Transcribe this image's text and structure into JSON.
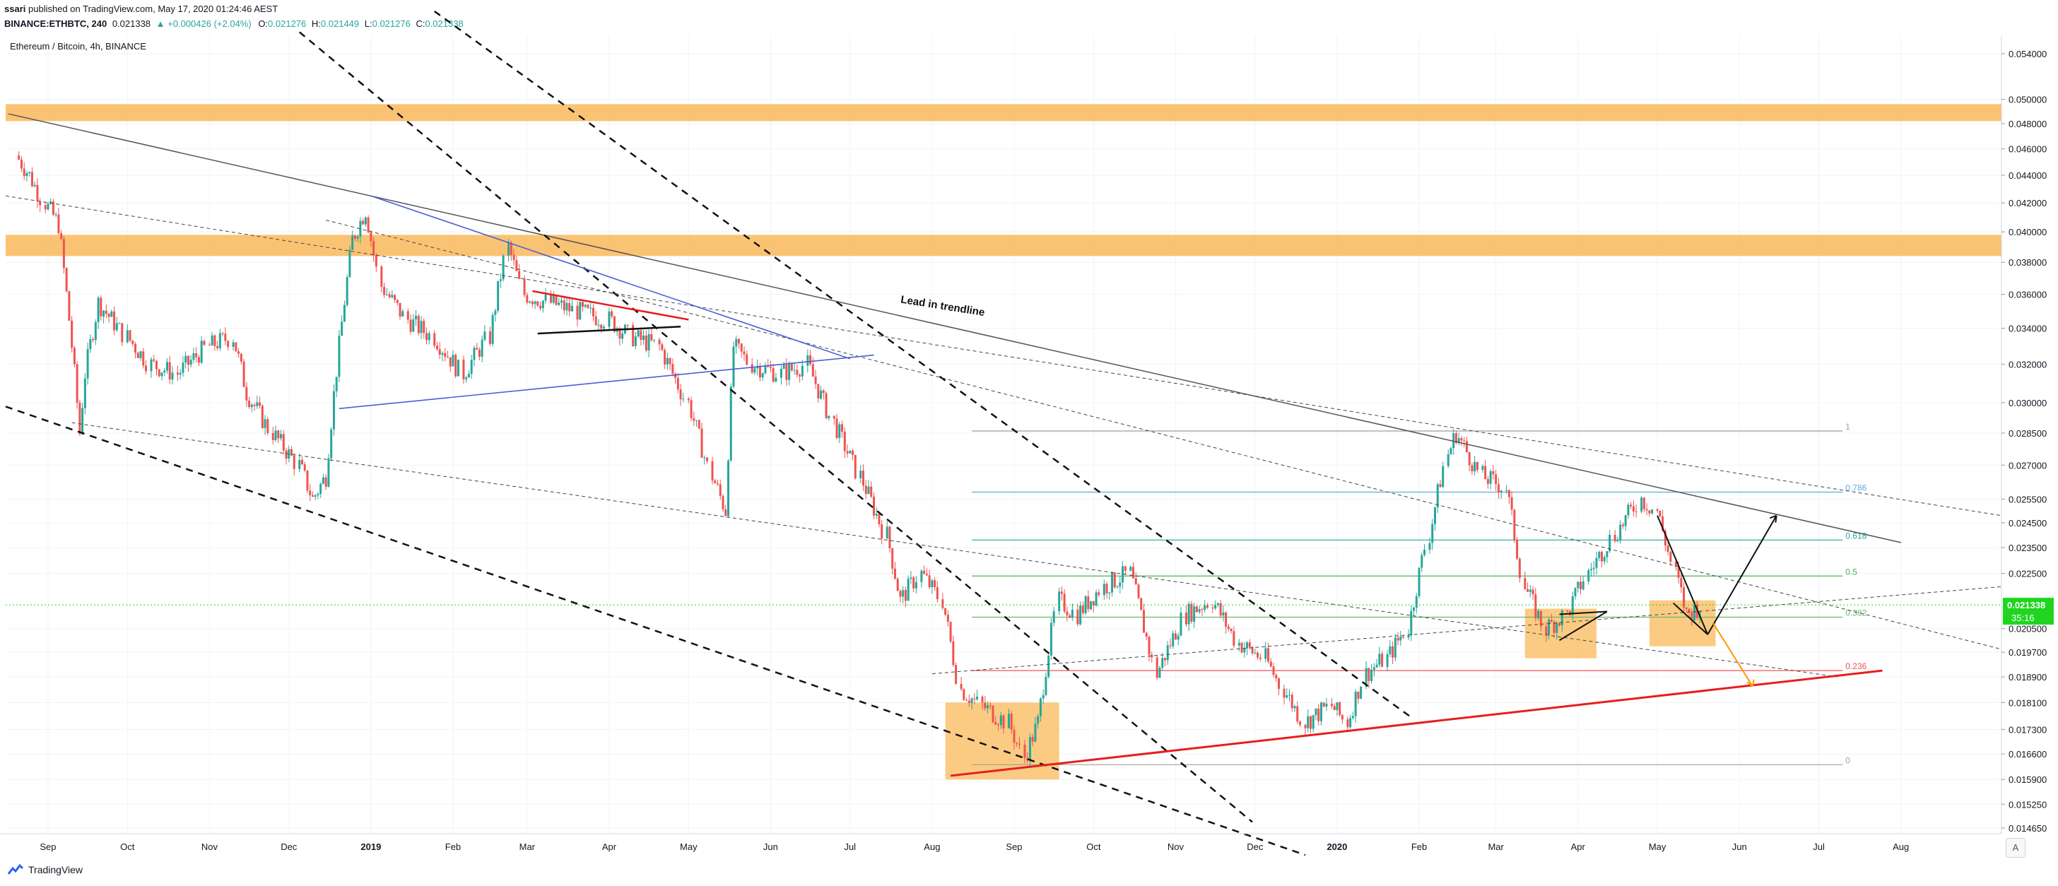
{
  "header": {
    "author": "ssari",
    "published_text": "published on TradingView.com, May 17, 2020 01:24:46 AEST",
    "symbol": "BINANCE:ETHBTC, 240",
    "last": "0.021338",
    "change": "▲ +0.000426 (+2.04%)",
    "o_label": "O:",
    "o_value": "0.021276",
    "h_label": "H:",
    "h_value": "0.021449",
    "l_label": "L:",
    "l_value": "0.021276",
    "c_label": "C:",
    "c_value": "0.021338"
  },
  "pane_title": "Ethereum / Bitcoin, 4h, BINANCE",
  "footer": {
    "brand": "TradingView",
    "scale_button": "A"
  },
  "colors": {
    "up": "#26a69a",
    "down": "#ef5350",
    "zone": "#f9b95a",
    "grid": "#f0f3fa",
    "axis_text": "#131722",
    "price_tag": "#1fd51f",
    "red_trend": "#e61e1e",
    "blue_trend": "#4b5fd6",
    "fib_gray": "#9e9e9e",
    "fib_786": "#5aaee0",
    "fib_618": "#26a69a",
    "fib_5": "#4caf50",
    "fib_382": "#66bb6a",
    "fib_236": "#ef5350",
    "orange_arrow": "#ff9800"
  },
  "chart_data": {
    "type": "candlestick",
    "title": "Ethereum / Bitcoin, 4h, BINANCE",
    "x_ticks": [
      "Sep",
      "Oct",
      "Nov",
      "Dec",
      "2019",
      "Feb",
      "Mar",
      "Apr",
      "May",
      "Jun",
      "Jul",
      "Aug",
      "Sep",
      "Oct",
      "Nov",
      "Dec",
      "2020",
      "Feb",
      "Mar",
      "Apr",
      "May",
      "Jun",
      "Jul",
      "Aug"
    ],
    "y_ticks": [
      "0.054000",
      "0.050000",
      "0.048000",
      "0.046000",
      "0.044000",
      "0.042000",
      "0.040000",
      "0.038000",
      "0.036000",
      "0.034000",
      "0.032000",
      "0.030000",
      "0.028500",
      "0.027000",
      "0.025500",
      "0.024500",
      "0.023500",
      "0.022500",
      "0.020500",
      "0.019700",
      "0.018900",
      "0.018100",
      "0.017300",
      "0.016600",
      "0.015900",
      "0.015250",
      "0.014650"
    ],
    "ylim": [
      0.0145,
      0.055
    ],
    "y_scale": "log",
    "price_path": [
      [
        "2018-08-20",
        0.0455
      ],
      [
        "2018-08-25",
        0.044
      ],
      [
        "2018-08-31",
        0.042
      ],
      [
        "2018-09-05",
        0.0405
      ],
      [
        "2018-09-10",
        0.033
      ],
      [
        "2018-09-13",
        0.0285
      ],
      [
        "2018-09-15",
        0.0315
      ],
      [
        "2018-09-20",
        0.0355
      ],
      [
        "2018-09-25",
        0.0345
      ],
      [
        "2018-10-01",
        0.0335
      ],
      [
        "2018-10-10",
        0.032
      ],
      [
        "2018-10-20",
        0.0315
      ],
      [
        "2018-11-01",
        0.033
      ],
      [
        "2018-11-10",
        0.0335
      ],
      [
        "2018-11-15",
        0.0305
      ],
      [
        "2018-11-25",
        0.0285
      ],
      [
        "2018-12-05",
        0.027
      ],
      [
        "2018-12-10",
        0.0255
      ],
      [
        "2018-12-15",
        0.0265
      ],
      [
        "2018-12-20",
        0.033
      ],
      [
        "2018-12-25",
        0.0395
      ],
      [
        "2018-12-30",
        0.0415
      ],
      [
        "2019-01-05",
        0.0365
      ],
      [
        "2019-01-15",
        0.0345
      ],
      [
        "2019-01-25",
        0.0335
      ],
      [
        "2019-02-05",
        0.0315
      ],
      [
        "2019-02-15",
        0.0335
      ],
      [
        "2019-02-22",
        0.039
      ],
      [
        "2019-02-28",
        0.036
      ],
      [
        "2019-03-10",
        0.0355
      ],
      [
        "2019-03-20",
        0.035
      ],
      [
        "2019-04-01",
        0.0345
      ],
      [
        "2019-04-10",
        0.0335
      ],
      [
        "2019-04-20",
        0.033
      ],
      [
        "2019-05-01",
        0.03
      ],
      [
        "2019-05-10",
        0.0265
      ],
      [
        "2019-05-15",
        0.025
      ],
      [
        "2019-05-18",
        0.033
      ],
      [
        "2019-05-25",
        0.032
      ],
      [
        "2019-06-05",
        0.0315
      ],
      [
        "2019-06-15",
        0.032
      ],
      [
        "2019-06-25",
        0.029
      ],
      [
        "2019-07-05",
        0.0265
      ],
      [
        "2019-07-15",
        0.024
      ],
      [
        "2019-07-20",
        0.0215
      ],
      [
        "2019-07-28",
        0.0225
      ],
      [
        "2019-08-05",
        0.0215
      ],
      [
        "2019-08-12",
        0.0185
      ],
      [
        "2019-08-20",
        0.018
      ],
      [
        "2019-08-30",
        0.0175
      ],
      [
        "2019-09-05",
        0.0165
      ],
      [
        "2019-09-10",
        0.0175
      ],
      [
        "2019-09-18",
        0.0215
      ],
      [
        "2019-09-25",
        0.021
      ],
      [
        "2019-10-05",
        0.022
      ],
      [
        "2019-10-15",
        0.0225
      ],
      [
        "2019-10-25",
        0.019
      ],
      [
        "2019-11-05",
        0.021
      ],
      [
        "2019-11-15",
        0.0215
      ],
      [
        "2019-11-25",
        0.02
      ],
      [
        "2019-12-05",
        0.0195
      ],
      [
        "2019-12-12",
        0.0185
      ],
      [
        "2019-12-20",
        0.0175
      ],
      [
        "2019-12-30",
        0.018
      ],
      [
        "2020-01-05",
        0.0175
      ],
      [
        "2020-01-12",
        0.019
      ],
      [
        "2020-01-20",
        0.0195
      ],
      [
        "2020-01-28",
        0.0205
      ],
      [
        "2020-02-05",
        0.024
      ],
      [
        "2020-02-12",
        0.0275
      ],
      [
        "2020-02-15",
        0.0285
      ],
      [
        "2020-02-25",
        0.0265
      ],
      [
        "2020-03-05",
        0.026
      ],
      [
        "2020-03-12",
        0.022
      ],
      [
        "2020-03-20",
        0.0205
      ],
      [
        "2020-03-28",
        0.021
      ],
      [
        "2020-04-05",
        0.0225
      ],
      [
        "2020-04-15",
        0.024
      ],
      [
        "2020-04-25",
        0.0255
      ],
      [
        "2020-05-01",
        0.025
      ],
      [
        "2020-05-08",
        0.0225
      ],
      [
        "2020-05-12",
        0.021
      ],
      [
        "2020-05-17",
        0.0213
      ]
    ],
    "current_price": "0.021338",
    "current_price_timer": "35:16",
    "fib_levels": [
      {
        "label": "1",
        "value": 0.0286
      },
      {
        "label": "0.786",
        "value": 0.0258
      },
      {
        "label": "0.618",
        "value": 0.0238
      },
      {
        "label": "0.5",
        "value": 0.0224
      },
      {
        "label": "0.382",
        "value": 0.0209
      },
      {
        "label": "0.236",
        "value": 0.0191
      },
      {
        "label": "0",
        "value": 0.0163
      }
    ],
    "annotations": [
      "Lead in trendline"
    ],
    "zones": [
      {
        "y": [
          0.0482,
          0.0496
        ]
      },
      {
        "y": [
          0.0384,
          0.0398
        ]
      }
    ],
    "grid": true
  }
}
